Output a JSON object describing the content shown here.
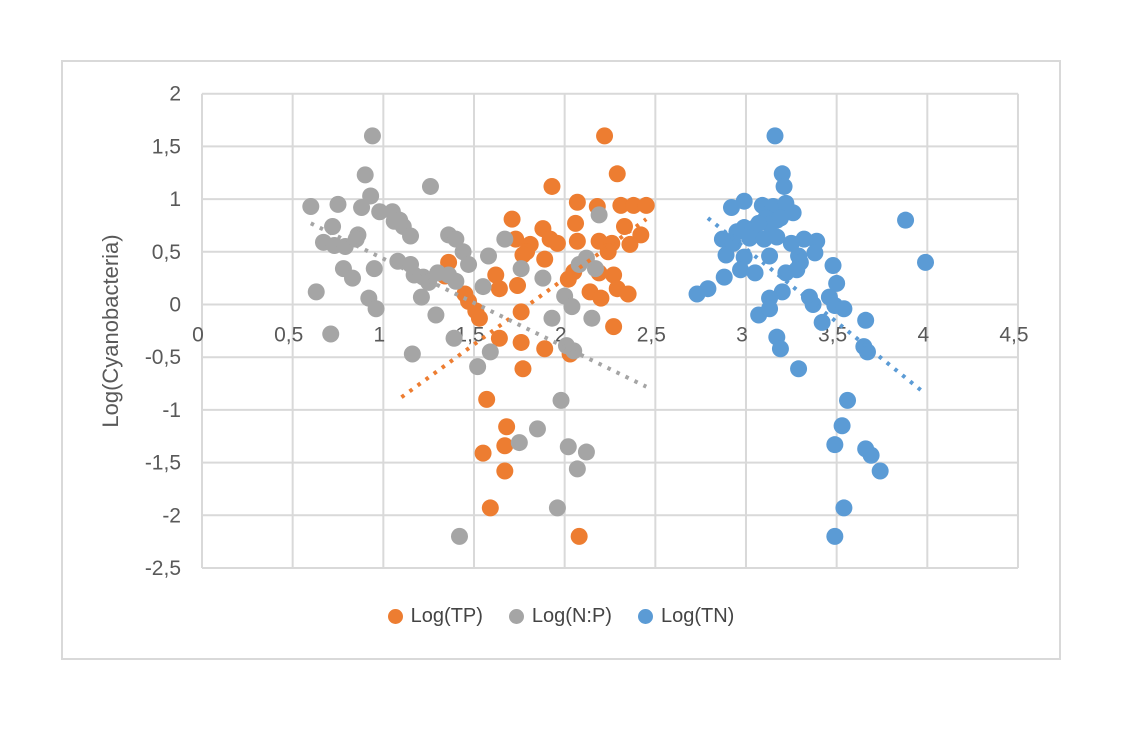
{
  "chart_data": {
    "type": "scatter",
    "title": "",
    "xlabel": "",
    "ylabel": "Log(Cyanobacteria)",
    "xlim": [
      0,
      4.5
    ],
    "ylim": [
      -2.5,
      2
    ],
    "grid": true,
    "legend_position": "bottom",
    "decimal_separator": ",",
    "x_ticks": [
      0,
      0.5,
      1,
      1.5,
      2,
      2.5,
      3,
      3.5,
      4,
      4.5
    ],
    "x_tick_labels": [
      "0",
      "0,5",
      "1",
      "1,5",
      "2",
      "2,5",
      "3",
      "3,5",
      "4",
      "4,5"
    ],
    "y_ticks": [
      2,
      1.5,
      1,
      0.5,
      0,
      -0.5,
      -1,
      -1.5,
      -2,
      -2.5
    ],
    "y_tick_labels": [
      "2",
      "1,5",
      "1",
      "0,5",
      "0",
      "-0,5",
      "-1",
      "-1,5",
      "-2",
      "-2,5"
    ],
    "series": [
      {
        "name": "Log(TP)",
        "color": "#ED7D31",
        "marker": "circle",
        "trendline": {
          "style": "dotted",
          "start": [
            1.1,
            -0.88
          ],
          "end": [
            2.45,
            0.81
          ]
        },
        "points": [
          [
            2.22,
            1.6
          ],
          [
            2.29,
            1.24
          ],
          [
            1.93,
            1.12
          ],
          [
            2.07,
            0.97
          ],
          [
            2.18,
            0.93
          ],
          [
            2.31,
            0.94
          ],
          [
            2.38,
            0.94
          ],
          [
            2.45,
            0.94
          ],
          [
            1.71,
            0.81
          ],
          [
            2.06,
            0.77
          ],
          [
            2.33,
            0.74
          ],
          [
            2.42,
            0.66
          ],
          [
            1.88,
            0.72
          ],
          [
            1.73,
            0.62
          ],
          [
            1.92,
            0.62
          ],
          [
            1.81,
            0.57
          ],
          [
            1.96,
            0.58
          ],
          [
            2.07,
            0.6
          ],
          [
            2.19,
            0.6
          ],
          [
            2.26,
            0.58
          ],
          [
            2.36,
            0.57
          ],
          [
            2.24,
            0.5
          ],
          [
            1.79,
            0.5
          ],
          [
            1.77,
            0.47
          ],
          [
            1.89,
            0.43
          ],
          [
            1.36,
            0.4
          ],
          [
            1.34,
            0.27
          ],
          [
            1.62,
            0.28
          ],
          [
            1.74,
            0.18
          ],
          [
            1.64,
            0.15
          ],
          [
            2.02,
            0.24
          ],
          [
            2.05,
            0.31
          ],
          [
            2.19,
            0.3
          ],
          [
            2.27,
            0.28
          ],
          [
            2.29,
            0.15
          ],
          [
            2.35,
            0.1
          ],
          [
            2.14,
            0.12
          ],
          [
            2.2,
            0.06
          ],
          [
            1.45,
            0.1
          ],
          [
            1.47,
            0.03
          ],
          [
            1.51,
            -0.06
          ],
          [
            1.53,
            -0.13
          ],
          [
            1.76,
            -0.07
          ],
          [
            1.64,
            -0.32
          ],
          [
            1.76,
            -0.36
          ],
          [
            1.77,
            -0.61
          ],
          [
            1.89,
            -0.42
          ],
          [
            2.03,
            -0.47
          ],
          [
            2.27,
            -0.21
          ],
          [
            1.57,
            -0.9
          ],
          [
            1.68,
            -1.16
          ],
          [
            1.55,
            -1.41
          ],
          [
            1.67,
            -1.34
          ],
          [
            1.67,
            -1.58
          ],
          [
            1.59,
            -1.93
          ],
          [
            2.08,
            -2.2
          ]
        ]
      },
      {
        "name": "Log(N:P)",
        "color": "#A5A5A5",
        "marker": "circle",
        "trendline": {
          "style": "dotted",
          "start": [
            0.6,
            0.77
          ],
          "end": [
            2.45,
            -0.78
          ]
        },
        "points": [
          [
            0.94,
            1.6
          ],
          [
            0.9,
            1.23
          ],
          [
            1.26,
            1.12
          ],
          [
            0.6,
            0.93
          ],
          [
            0.75,
            0.95
          ],
          [
            0.88,
            0.92
          ],
          [
            0.93,
            1.03
          ],
          [
            0.98,
            0.88
          ],
          [
            1.05,
            0.88
          ],
          [
            1.09,
            0.8
          ],
          [
            0.72,
            0.74
          ],
          [
            0.86,
            0.66
          ],
          [
            0.67,
            0.59
          ],
          [
            0.73,
            0.56
          ],
          [
            0.79,
            0.55
          ],
          [
            0.85,
            0.62
          ],
          [
            1.06,
            0.79
          ],
          [
            1.11,
            0.74
          ],
          [
            1.15,
            0.65
          ],
          [
            1.36,
            0.66
          ],
          [
            1.4,
            0.62
          ],
          [
            1.08,
            0.41
          ],
          [
            1.15,
            0.38
          ],
          [
            1.17,
            0.28
          ],
          [
            1.22,
            0.26
          ],
          [
            1.25,
            0.21
          ],
          [
            1.3,
            0.3
          ],
          [
            1.36,
            0.28
          ],
          [
            1.4,
            0.22
          ],
          [
            0.78,
            0.34
          ],
          [
            0.83,
            0.25
          ],
          [
            0.95,
            0.34
          ],
          [
            0.63,
            0.12
          ],
          [
            0.92,
            0.06
          ],
          [
            0.96,
            -0.04
          ],
          [
            1.21,
            0.07
          ],
          [
            1.29,
            -0.1
          ],
          [
            0.71,
            -0.28
          ],
          [
            1.16,
            -0.47
          ],
          [
            1.39,
            -0.32
          ],
          [
            1.44,
            0.5
          ],
          [
            1.47,
            0.38
          ],
          [
            1.55,
            0.17
          ],
          [
            1.58,
            0.46
          ],
          [
            1.67,
            0.62
          ],
          [
            1.76,
            0.34
          ],
          [
            1.88,
            0.25
          ],
          [
            2.19,
            0.85
          ],
          [
            2.08,
            0.38
          ],
          [
            2.12,
            0.44
          ],
          [
            2.17,
            0.34
          ],
          [
            2.0,
            0.08
          ],
          [
            2.04,
            -0.02
          ],
          [
            1.93,
            -0.13
          ],
          [
            2.15,
            -0.13
          ],
          [
            2.01,
            -0.39
          ],
          [
            2.05,
            -0.44
          ],
          [
            1.52,
            -0.59
          ],
          [
            1.59,
            -0.45
          ],
          [
            1.98,
            -0.91
          ],
          [
            1.85,
            -1.18
          ],
          [
            1.75,
            -1.31
          ],
          [
            2.02,
            -1.35
          ],
          [
            2.12,
            -1.4
          ],
          [
            2.07,
            -1.56
          ],
          [
            1.96,
            -1.93
          ],
          [
            1.42,
            -2.2
          ]
        ]
      },
      {
        "name": "Log(TN)",
        "color": "#5B9BD5",
        "marker": "circle",
        "trendline": {
          "style": "dotted",
          "start": [
            2.79,
            0.82
          ],
          "end": [
            3.97,
            -0.82
          ]
        },
        "points": [
          [
            3.16,
            1.6
          ],
          [
            3.2,
            1.24
          ],
          [
            3.21,
            1.12
          ],
          [
            2.92,
            0.92
          ],
          [
            2.99,
            0.98
          ],
          [
            3.09,
            0.94
          ],
          [
            3.15,
            0.93
          ],
          [
            3.22,
            0.96
          ],
          [
            3.26,
            0.87
          ],
          [
            3.11,
            0.82
          ],
          [
            3.17,
            0.8
          ],
          [
            3.13,
            0.76
          ],
          [
            3.19,
            0.82
          ],
          [
            2.99,
            0.73
          ],
          [
            3.07,
            0.77
          ],
          [
            2.95,
            0.69
          ],
          [
            3.04,
            0.72
          ],
          [
            2.87,
            0.62
          ],
          [
            2.93,
            0.58
          ],
          [
            3.02,
            0.63
          ],
          [
            3.1,
            0.62
          ],
          [
            3.17,
            0.64
          ],
          [
            3.25,
            0.58
          ],
          [
            3.32,
            0.62
          ],
          [
            3.39,
            0.6
          ],
          [
            2.89,
            0.47
          ],
          [
            2.99,
            0.45
          ],
          [
            3.13,
            0.46
          ],
          [
            3.29,
            0.46
          ],
          [
            3.38,
            0.49
          ],
          [
            3.3,
            0.4
          ],
          [
            2.97,
            0.33
          ],
          [
            3.05,
            0.3
          ],
          [
            3.22,
            0.3
          ],
          [
            3.28,
            0.33
          ],
          [
            2.88,
            0.26
          ],
          [
            2.79,
            0.15
          ],
          [
            2.73,
            0.1
          ],
          [
            3.2,
            0.12
          ],
          [
            3.13,
            0.06
          ],
          [
            3.35,
            0.07
          ],
          [
            3.37,
            0.0
          ],
          [
            3.48,
            0.37
          ],
          [
            3.5,
            0.2
          ],
          [
            3.46,
            0.07
          ],
          [
            3.49,
            -0.01
          ],
          [
            3.54,
            -0.04
          ],
          [
            3.07,
            -0.1
          ],
          [
            3.13,
            -0.04
          ],
          [
            3.42,
            -0.17
          ],
          [
            3.66,
            -0.15
          ],
          [
            3.17,
            -0.31
          ],
          [
            3.19,
            -0.42
          ],
          [
            3.29,
            -0.61
          ],
          [
            3.65,
            -0.4
          ],
          [
            3.67,
            -0.45
          ],
          [
            3.88,
            0.8
          ],
          [
            3.99,
            0.4
          ],
          [
            3.56,
            -0.91
          ],
          [
            3.53,
            -1.15
          ],
          [
            3.49,
            -1.33
          ],
          [
            3.66,
            -1.37
          ],
          [
            3.69,
            -1.43
          ],
          [
            3.74,
            -1.58
          ],
          [
            3.54,
            -1.93
          ],
          [
            3.49,
            -2.2
          ]
        ]
      }
    ]
  },
  "styles": {
    "grid_color": "#d9d9d9",
    "tick_label_color": "#595959",
    "axis_title_color": "#595959",
    "legend_text_color": "#444444",
    "card_border_color": "#d9d9d9",
    "background": "#ffffff"
  }
}
